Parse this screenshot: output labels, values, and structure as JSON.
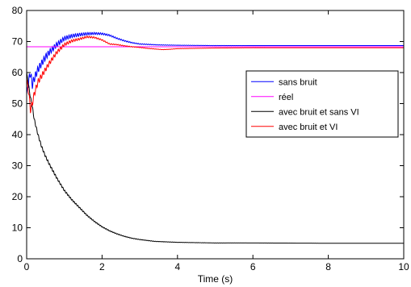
{
  "chart_data": {
    "type": "line",
    "title": "",
    "xlabel": "Time (s)",
    "ylabel": "",
    "xlim": [
      0,
      10
    ],
    "ylim": [
      0,
      80
    ],
    "xticks": [
      0,
      2,
      4,
      6,
      8,
      10
    ],
    "yticks": [
      0,
      10,
      20,
      30,
      40,
      50,
      60,
      70,
      80
    ],
    "grid": false,
    "legend_position": "right",
    "series": [
      {
        "name": "sans bruit",
        "color": "#0000ff",
        "x": [
          0,
          0.05,
          0.1,
          0.15,
          0.2,
          0.3,
          0.4,
          0.5,
          0.6,
          0.8,
          1.0,
          1.2,
          1.4,
          1.6,
          1.8,
          2.0,
          2.2,
          2.4,
          2.6,
          2.8,
          3.0,
          3.5,
          4.0,
          5.0,
          6.0,
          8.0,
          10.0
        ],
        "y": [
          53,
          57,
          60,
          56,
          58,
          61,
          63,
          65,
          66.5,
          69,
          71,
          71.8,
          72.2,
          72.5,
          72.6,
          72.5,
          72,
          71,
          70.2,
          69.6,
          69.2,
          68.9,
          68.8,
          68.7,
          68.7,
          68.7,
          68.7
        ],
        "osc_amp": 1.5,
        "osc_freq": 18,
        "osc_decay": 0.8
      },
      {
        "name": "réel",
        "color": "#ff00ff",
        "x": [
          0,
          10
        ],
        "y": [
          68.3,
          68.3
        ]
      },
      {
        "name": "avec bruit et sans VI",
        "color": "#000000",
        "x": [
          0,
          0.05,
          0.1,
          0.15,
          0.2,
          0.3,
          0.4,
          0.5,
          0.6,
          0.8,
          1.0,
          1.2,
          1.4,
          1.6,
          1.8,
          2.0,
          2.2,
          2.4,
          2.6,
          2.8,
          3.0,
          3.2,
          3.4,
          3.6,
          4.0,
          4.5,
          5.0,
          6.0,
          7.0,
          8.0,
          9.0,
          10.0
        ],
        "y": [
          60,
          56,
          52,
          49,
          45,
          40,
          36,
          33,
          30.5,
          26,
          22,
          19,
          16.5,
          14,
          12,
          10.3,
          9,
          8,
          7.2,
          6.6,
          6.2,
          5.9,
          5.6,
          5.5,
          5.3,
          5.2,
          5.1,
          5.1,
          5.05,
          5.0,
          5.0,
          5.0
        ],
        "osc_amp": 0.5,
        "osc_freq": 20,
        "osc_decay": 0.6
      },
      {
        "name": "avec bruit et VI",
        "color": "#ff0000",
        "x": [
          0,
          0.05,
          0.1,
          0.15,
          0.2,
          0.3,
          0.4,
          0.5,
          0.6,
          0.8,
          1.0,
          1.2,
          1.4,
          1.6,
          1.8,
          2.0,
          2.2,
          2.4,
          2.6,
          2.8,
          3.0,
          3.2,
          3.4,
          3.6,
          3.8,
          4.0,
          5.0,
          6.0,
          8.0,
          10.0
        ],
        "y": [
          58,
          54,
          48,
          50,
          53,
          57,
          59,
          61,
          63,
          66.5,
          69,
          70.2,
          70.8,
          71.5,
          71.3,
          70.5,
          69.2,
          69,
          68.6,
          68.3,
          68.1,
          67.8,
          67.6,
          67.4,
          67.5,
          67.7,
          67.9,
          68.0,
          68.0,
          68.0
        ],
        "osc_amp": 1.2,
        "osc_freq": 17,
        "osc_decay": 0.9
      }
    ]
  }
}
